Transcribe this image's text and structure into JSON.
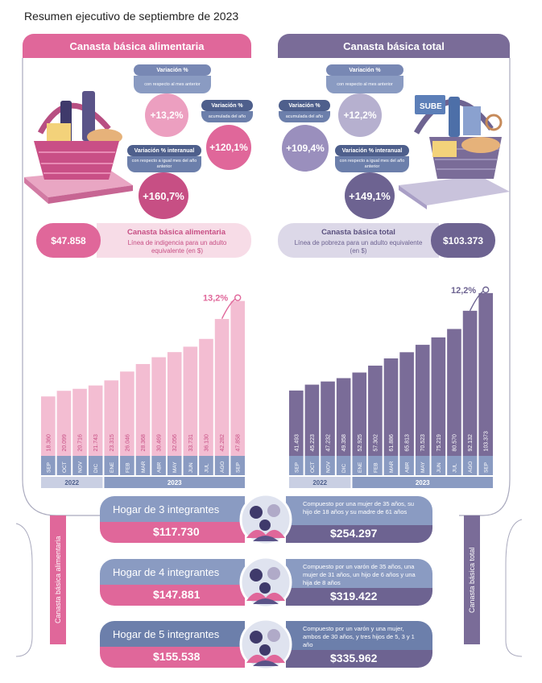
{
  "page_title": "Resumen ejecutivo de septiembre de 2023",
  "colors": {
    "pink": "#e0679a",
    "pink_light": "#f3bdd2",
    "pink_dark": "#c74f84",
    "purple": "#7a6c98",
    "purple_dark": "#6d6391",
    "purple_light": "#cfcade",
    "blue_gray": "#8a9bc2"
  },
  "left_panel": {
    "header": "Canasta básica alimentaria",
    "variacion_mensual": {
      "label": "Variación %",
      "sub": "con respecto al mes anterior",
      "value": "+13,2%"
    },
    "variacion_acumulada": {
      "label": "Variación %",
      "sub": "acumulada del año",
      "value": "+120,1%"
    },
    "variacion_interanual": {
      "label": "Variación % interanual",
      "sub": "con respecto a igual mes del año anterior",
      "value": "+160,7%"
    },
    "band": {
      "value": "$47.858",
      "name": "Canasta básica alimentaria",
      "sub": "Línea de indigencia para un adulto equivalente (en $)"
    },
    "side_label": "Canasta básica alimentaria"
  },
  "right_panel": {
    "header": "Canasta básica total",
    "variacion_acumulada": {
      "label": "Variación %",
      "sub": "acumulada del año",
      "value": "+109,4%"
    },
    "variacion_mensual": {
      "label": "Variación %",
      "sub": "con respecto al mes anterior",
      "value": "+12,2%"
    },
    "variacion_interanual": {
      "label": "Variación % interanual",
      "sub": "con respecto a igual mes del año anterior",
      "value": "+149,1%"
    },
    "band": {
      "value": "$103.373",
      "name": "Canasta básica total",
      "sub": "Línea de pobreza para un adulto equivalente (en $)"
    },
    "side_label": "Canasta básica total",
    "sube_label": "SUBE"
  },
  "chart_data": [
    {
      "type": "bar",
      "categories": [
        "SEP",
        "OCT",
        "NOV",
        "DIC",
        "ENE",
        "FEB",
        "MAR",
        "ABR",
        "MAY",
        "JUN",
        "JUL",
        "AGO",
        "SEP"
      ],
      "values": [
        18360,
        20099,
        20716,
        21743,
        23315,
        26046,
        28368,
        30469,
        32056,
        33731,
        36130,
        42282,
        47858
      ],
      "value_labels": [
        "18.360",
        "20.099",
        "20.716",
        "21.743",
        "23.315",
        "26.046",
        "28.368",
        "30.469",
        "32.056",
        "33.731",
        "36.130",
        "42.282",
        "47.858"
      ],
      "year_groups": [
        {
          "label": "2022",
          "count": 4
        },
        {
          "label": "2023",
          "count": 9
        }
      ],
      "annotation": "13,2%",
      "ylim": [
        0,
        52000
      ],
      "color": "#f3bdd2",
      "highlight_color": "#e0679a"
    },
    {
      "type": "bar",
      "categories": [
        "SEP",
        "OCT",
        "NOV",
        "DIC",
        "ENE",
        "FEB",
        "MAR",
        "ABR",
        "MAY",
        "JUN",
        "JUL",
        "AGO",
        "SEP"
      ],
      "values": [
        41493,
        45223,
        47232,
        49358,
        52925,
        57302,
        61886,
        65813,
        70523,
        75219,
        80570,
        92132,
        103373
      ],
      "value_labels": [
        "41.493",
        "45.223",
        "47.232",
        "49.358",
        "52.925",
        "57.302",
        "61.886",
        "65.813",
        "70.523",
        "75.219",
        "80.570",
        "92.132",
        "103.373"
      ],
      "year_groups": [
        {
          "label": "2022",
          "count": 4
        },
        {
          "label": "2023",
          "count": 9
        }
      ],
      "annotation": "12,2%",
      "ylim": [
        0,
        112000
      ],
      "color": "#7a6c98",
      "highlight_color": "#6d6391"
    }
  ],
  "households": [
    {
      "title": "Hogar de 3 integrantes",
      "cba": "$117.730",
      "cbt": "$254.297",
      "desc": "Compuesto por una mujer de 35 años, su hijo de 18 años y su madre de 61 años"
    },
    {
      "title": "Hogar de 4 integrantes",
      "cba": "$147.881",
      "cbt": "$319.422",
      "desc": "Compuesto por un varón de 35 años, una mujer de 31 años, un hijo de 6 años y una hija de 8 años"
    },
    {
      "title": "Hogar de 5 integrantes",
      "cba": "$155.538",
      "cbt": "$335.962",
      "desc": "Compuesto por un varón y una mujer, ambos de 30 años, y tres hijos de 5, 3 y 1 año"
    }
  ]
}
